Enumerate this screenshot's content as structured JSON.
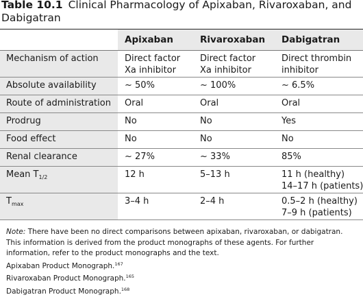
{
  "caption": {
    "number": "Table 10.1",
    "title": "Clinical Pharmacology of Apixaban, Rivaroxaban, and Dabigatran"
  },
  "table": {
    "headers": [
      "",
      "Apixaban",
      "Rivaroxaban",
      "Dabigatran"
    ],
    "rows": [
      {
        "label": "Mechanism of action",
        "apix": [
          "Direct factor",
          "Xa inhibitor"
        ],
        "riva": [
          "Direct factor",
          "Xa inhibitor"
        ],
        "dabi": [
          "Direct thrombin",
          "inhibitor"
        ]
      },
      {
        "label": "Absolute availability",
        "apix": [
          "~ 50%"
        ],
        "riva": [
          "~ 100%"
        ],
        "dabi": [
          "~ 6.5%"
        ]
      },
      {
        "label": "Route of administration",
        "apix": [
          "Oral"
        ],
        "riva": [
          "Oral"
        ],
        "dabi": [
          "Oral"
        ]
      },
      {
        "label": "Prodrug",
        "apix": [
          "No"
        ],
        "riva": [
          "No"
        ],
        "dabi": [
          "Yes"
        ]
      },
      {
        "label": "Food effect",
        "apix": [
          "No"
        ],
        "riva": [
          "No"
        ],
        "dabi": [
          "No"
        ]
      },
      {
        "label": "Renal clearance",
        "apix": [
          "~ 27%"
        ],
        "riva": [
          "~ 33%"
        ],
        "dabi": [
          "85%"
        ]
      },
      {
        "label": "Mean T",
        "label_sub": "1/2",
        "apix": [
          "12 h"
        ],
        "riva": [
          "5–13 h"
        ],
        "dabi": [
          "11 h (healthy)",
          "14–17 h (patients)"
        ]
      },
      {
        "label": "T",
        "label_sub": "max",
        "apix": [
          "3–4 h"
        ],
        "riva": [
          "2–4 h"
        ],
        "dabi": [
          "0.5–2 h (healthy)",
          "7–9 h (patients)"
        ]
      }
    ]
  },
  "notes": {
    "note_label": "Note:",
    "note_text": " There have been no direct comparisons between apixaban, rivaroxaban, or dabigatran. This information is derived from the product monographs of these agents. For further information, refer to the product monographs and the text.",
    "references": [
      {
        "text": "Apixaban Product Monograph.",
        "ref": "167"
      },
      {
        "text": "Rivaroxaban Product Monograph.",
        "ref": "165"
      },
      {
        "text": "Dabigatran Product Monograph.",
        "ref": "168"
      }
    ]
  }
}
